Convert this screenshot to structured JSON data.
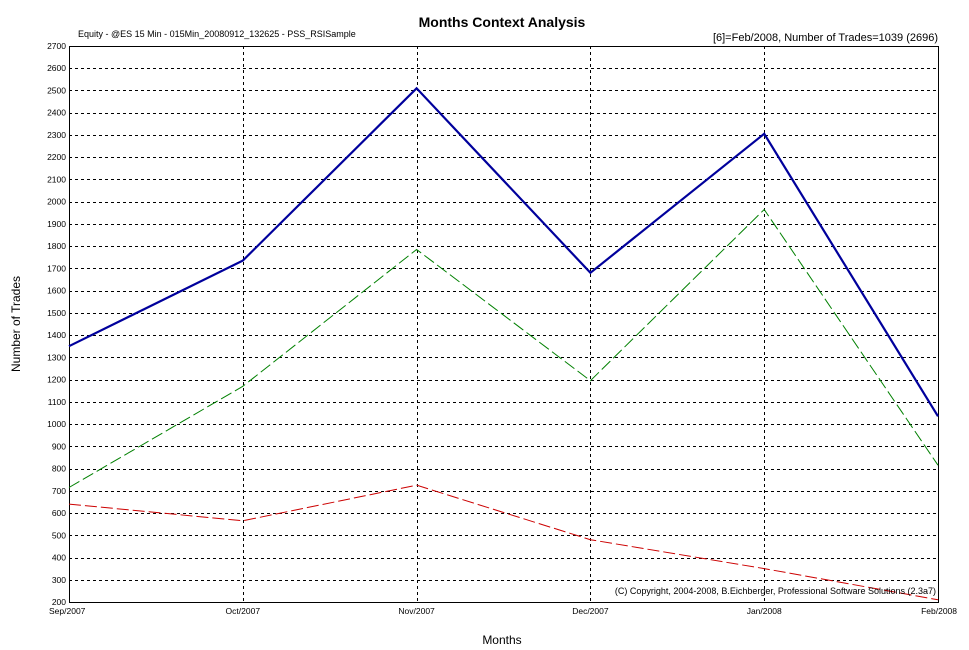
{
  "chart_data": {
    "type": "line",
    "title": "Months Context Analysis",
    "subtitle": "Equity - @ES 15 Min - 015Min_20080912_132625 - PSS_RSISample",
    "info": "[6]=Feb/2008,   Number of Trades=1039 (2696)",
    "copyright": "(C) Copyright, 2004-2008, B.Eichberger, Professional Software Solutions (2.3a7)",
    "xlabel": "Months",
    "ylabel": "Number of Trades",
    "categories": [
      "Sep/2007",
      "Oct/2007",
      "Nov/2007",
      "Dec/2007",
      "Jan/2008",
      "Feb/2008"
    ],
    "ylim": [
      200,
      2700
    ],
    "yticks": [
      200,
      300,
      400,
      500,
      600,
      700,
      800,
      900,
      1000,
      1100,
      1200,
      1300,
      1400,
      1500,
      1600,
      1700,
      1800,
      1900,
      2000,
      2100,
      2200,
      2300,
      2400,
      2500,
      2600,
      2700
    ],
    "grid": true,
    "series": [
      {
        "color": "#00009c",
        "style": "solid",
        "values": [
          1350,
          1735,
          2510,
          1680,
          2305,
          1035
        ]
      },
      {
        "color": "#008000",
        "style": "dashed",
        "values": [
          715,
          1170,
          1785,
          1195,
          1965,
          815
        ]
      },
      {
        "color": "#cc0000",
        "style": "dashed",
        "values": [
          640,
          565,
          725,
          480,
          350,
          210
        ]
      }
    ]
  }
}
